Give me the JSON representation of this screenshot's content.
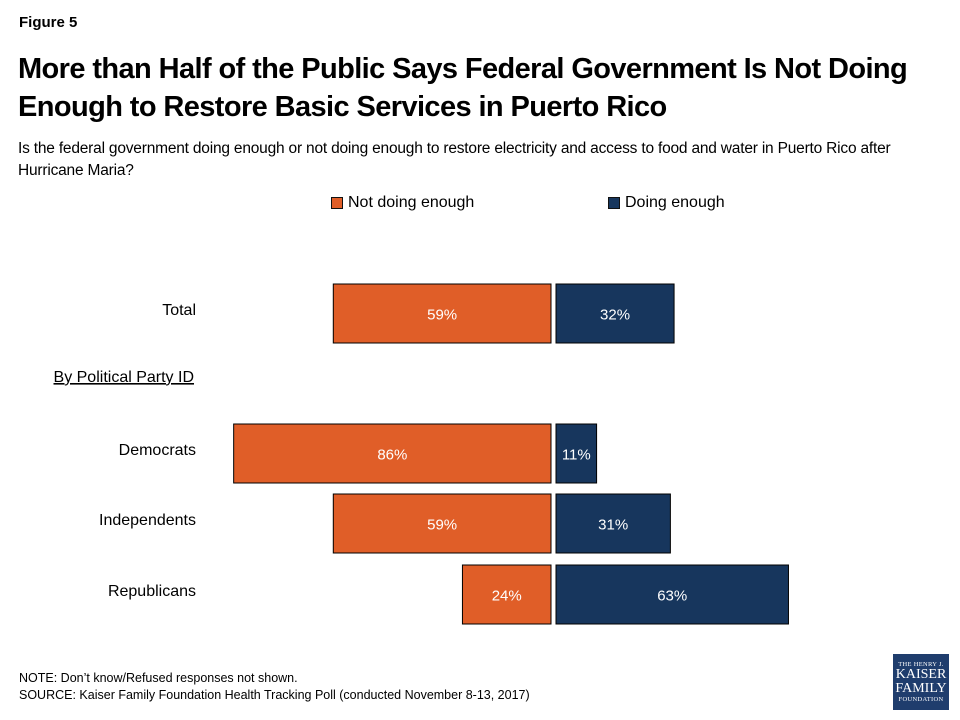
{
  "figure_label": "Figure 5",
  "title": "More than Half of the Public Says Federal Government Is Not Doing Enough to Restore Basic Services in Puerto Rico",
  "subtitle": "Is the federal government doing enough or not doing enough to restore electricity and access to food and water in Puerto Rico after Hurricane Maria?",
  "colors": {
    "not_enough": "#e05e28",
    "enough": "#17365d"
  },
  "chart_data": {
    "type": "bar",
    "orientation": "horizontal-diverging",
    "title": "More than Half of the Public Says Federal Government Is Not Doing Enough to Restore Basic Services in Puerto Rico",
    "categories": [
      "Total",
      "Democrats",
      "Independents",
      "Republicans"
    ],
    "group_heading": "By Political Party ID",
    "series": [
      {
        "name": "Not doing enough",
        "values": [
          59,
          86,
          59,
          24
        ],
        "labels": [
          "59%",
          "86%",
          "59%",
          "24%"
        ]
      },
      {
        "name": "Doing enough",
        "values": [
          32,
          11,
          31,
          63
        ],
        "labels": [
          "32%",
          "11%",
          "31%",
          "63%"
        ]
      }
    ],
    "unit": "%",
    "legend": "top-center",
    "grid": false
  },
  "footer": {
    "note": "NOTE: Don’t know/Refused responses not shown.",
    "source": "SOURCE: Kaiser Family Foundation  Health Tracking Poll (conducted November 8-13, 2017)"
  },
  "logo": {
    "line1": "THE HENRY J.",
    "line2": "KAISER",
    "line3": "FAMILY",
    "line4": "FOUNDATION"
  }
}
